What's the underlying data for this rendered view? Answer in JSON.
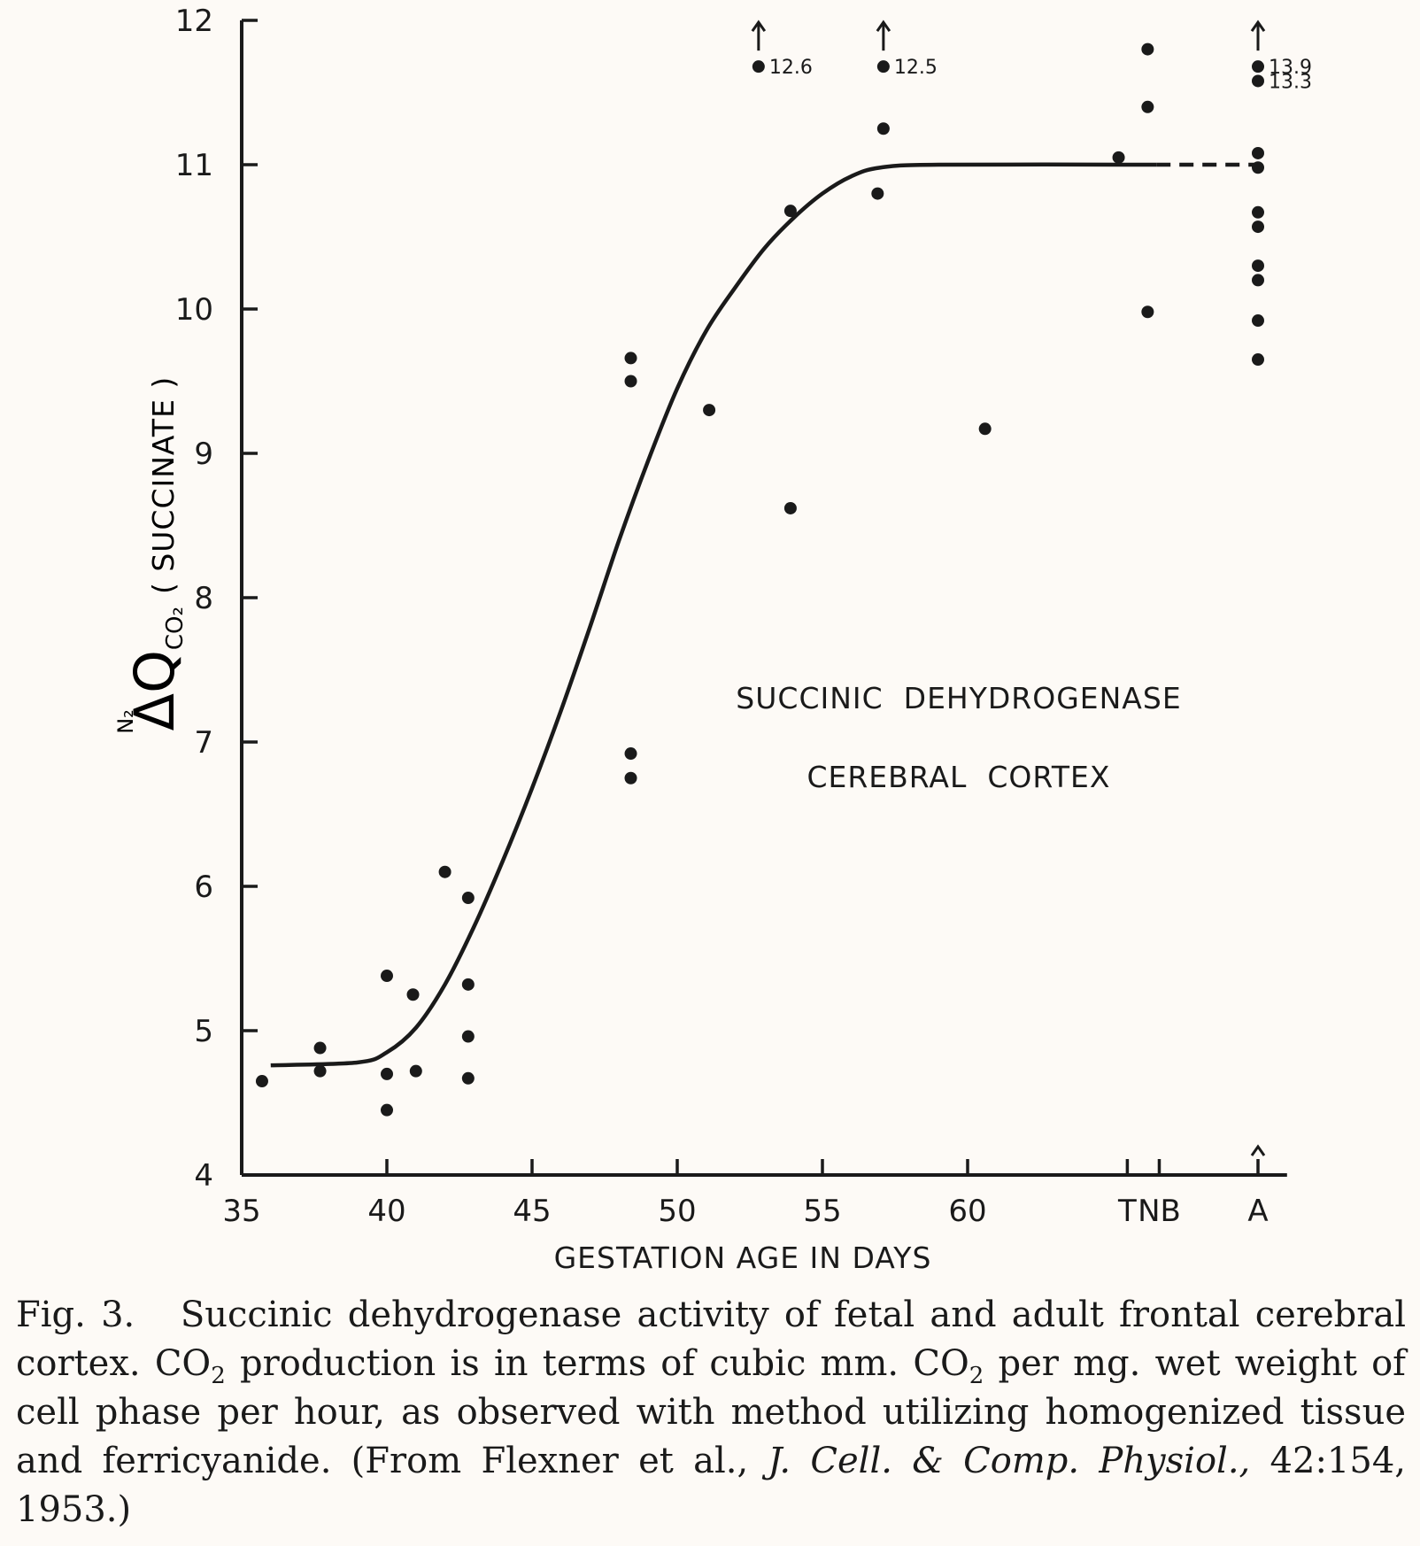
{
  "chart_data": {
    "type": "scatter",
    "xlabel": "GESTATION AGE IN DAYS",
    "ylabel_prefix": "ΔQ",
    "ylabel_sup": "N₂",
    "ylabel_sub": "CO₂",
    "ylabel_suffix": "( SUCCINATE )",
    "xlim": [
      35,
      71
    ],
    "ylim": [
      4,
      12
    ],
    "x_ticks": [
      35,
      40,
      45,
      50,
      55,
      60
    ],
    "x_tick_labels": [
      "35",
      "40",
      "45",
      "50",
      "55",
      "60"
    ],
    "x_category_ticks": [
      {
        "x": 65.5,
        "label": "T"
      },
      {
        "x": 66.6,
        "label": "NB"
      },
      {
        "x": 70,
        "label": "A"
      }
    ],
    "y_ticks": [
      4,
      5,
      6,
      7,
      8,
      9,
      10,
      11,
      12
    ],
    "y_tick_labels": [
      "4",
      "5",
      "6",
      "7",
      "8",
      "9",
      "10",
      "11",
      "12"
    ],
    "annotation_lines": [
      "SUCCINIC  DEHYDROGENASE",
      "CEREBRAL  CORTEX"
    ],
    "points": [
      {
        "x": 35.7,
        "y": 4.65
      },
      {
        "x": 37.7,
        "y": 4.88
      },
      {
        "x": 37.7,
        "y": 4.72
      },
      {
        "x": 40.0,
        "y": 5.38
      },
      {
        "x": 40.0,
        "y": 4.7
      },
      {
        "x": 40.0,
        "y": 4.45
      },
      {
        "x": 40.9,
        "y": 5.25
      },
      {
        "x": 41.0,
        "y": 4.72
      },
      {
        "x": 42.0,
        "y": 6.1
      },
      {
        "x": 42.8,
        "y": 5.92
      },
      {
        "x": 42.8,
        "y": 5.32
      },
      {
        "x": 42.8,
        "y": 4.96
      },
      {
        "x": 42.8,
        "y": 4.67
      },
      {
        "x": 48.4,
        "y": 9.66
      },
      {
        "x": 48.4,
        "y": 9.5
      },
      {
        "x": 48.4,
        "y": 6.92
      },
      {
        "x": 48.4,
        "y": 6.75
      },
      {
        "x": 51.1,
        "y": 9.3
      },
      {
        "x": 52.8,
        "y": 11.68
      },
      {
        "x": 53.9,
        "y": 10.68
      },
      {
        "x": 53.9,
        "y": 8.62
      },
      {
        "x": 56.9,
        "y": 10.8
      },
      {
        "x": 57.1,
        "y": 11.25
      },
      {
        "x": 57.1,
        "y": 11.68
      },
      {
        "x": 60.6,
        "y": 9.17
      },
      {
        "x": 65.2,
        "y": 11.05
      },
      {
        "x": 66.2,
        "y": 11.8
      },
      {
        "x": 66.2,
        "y": 11.4
      },
      {
        "x": 66.2,
        "y": 9.98
      },
      {
        "x": 70.0,
        "y": 11.68
      },
      {
        "x": 70.0,
        "y": 11.58
      },
      {
        "x": 70.0,
        "y": 11.08
      },
      {
        "x": 70.0,
        "y": 10.98
      },
      {
        "x": 70.0,
        "y": 10.67
      },
      {
        "x": 70.0,
        "y": 10.57
      },
      {
        "x": 70.0,
        "y": 10.3
      },
      {
        "x": 70.0,
        "y": 10.2
      },
      {
        "x": 70.0,
        "y": 9.92
      },
      {
        "x": 70.0,
        "y": 9.65
      }
    ],
    "offscale_labels": [
      {
        "x": 52.8,
        "y": 11.68,
        "label": "12.6"
      },
      {
        "x": 57.1,
        "y": 11.68,
        "label": "12.5"
      },
      {
        "x": 70.0,
        "y": 11.68,
        "label": "13.9"
      },
      {
        "x": 70.0,
        "y": 11.58,
        "label": "13.3"
      }
    ],
    "curve": [
      {
        "x": 36,
        "y": 4.76
      },
      {
        "x": 39,
        "y": 4.78
      },
      {
        "x": 40,
        "y": 4.85
      },
      {
        "x": 41,
        "y": 5.02
      },
      {
        "x": 42,
        "y": 5.32
      },
      {
        "x": 43,
        "y": 5.72
      },
      {
        "x": 44,
        "y": 6.18
      },
      {
        "x": 45,
        "y": 6.68
      },
      {
        "x": 46,
        "y": 7.22
      },
      {
        "x": 47,
        "y": 7.8
      },
      {
        "x": 48,
        "y": 8.4
      },
      {
        "x": 49,
        "y": 8.95
      },
      {
        "x": 50,
        "y": 9.45
      },
      {
        "x": 51,
        "y": 9.85
      },
      {
        "x": 52,
        "y": 10.15
      },
      {
        "x": 53,
        "y": 10.42
      },
      {
        "x": 54,
        "y": 10.63
      },
      {
        "x": 55,
        "y": 10.8
      },
      {
        "x": 56,
        "y": 10.92
      },
      {
        "x": 57,
        "y": 10.98
      },
      {
        "x": 59,
        "y": 11.0
      },
      {
        "x": 66.5,
        "y": 11.0
      }
    ],
    "dashed_segment": [
      {
        "x": 66.5,
        "y": 11.0
      },
      {
        "x": 70.0,
        "y": 11.0
      }
    ]
  },
  "caption": {
    "fig_label": "Fig. 3.",
    "part1": "Succinic dehydrogenase activity of fetal and adult frontal cerebral cortex. CO",
    "sub1": "2",
    "part2": " production is in terms of cubic mm. CO",
    "sub2": "2",
    "part3": " per mg. wet weight of cell phase per hour, as observed with method utilizing homogenized tissue and ferricyanide. (From Flexner et al., ",
    "journal": "J. Cell. & Comp. Physiol.,",
    "part4": " 42:154, 1953.)"
  }
}
